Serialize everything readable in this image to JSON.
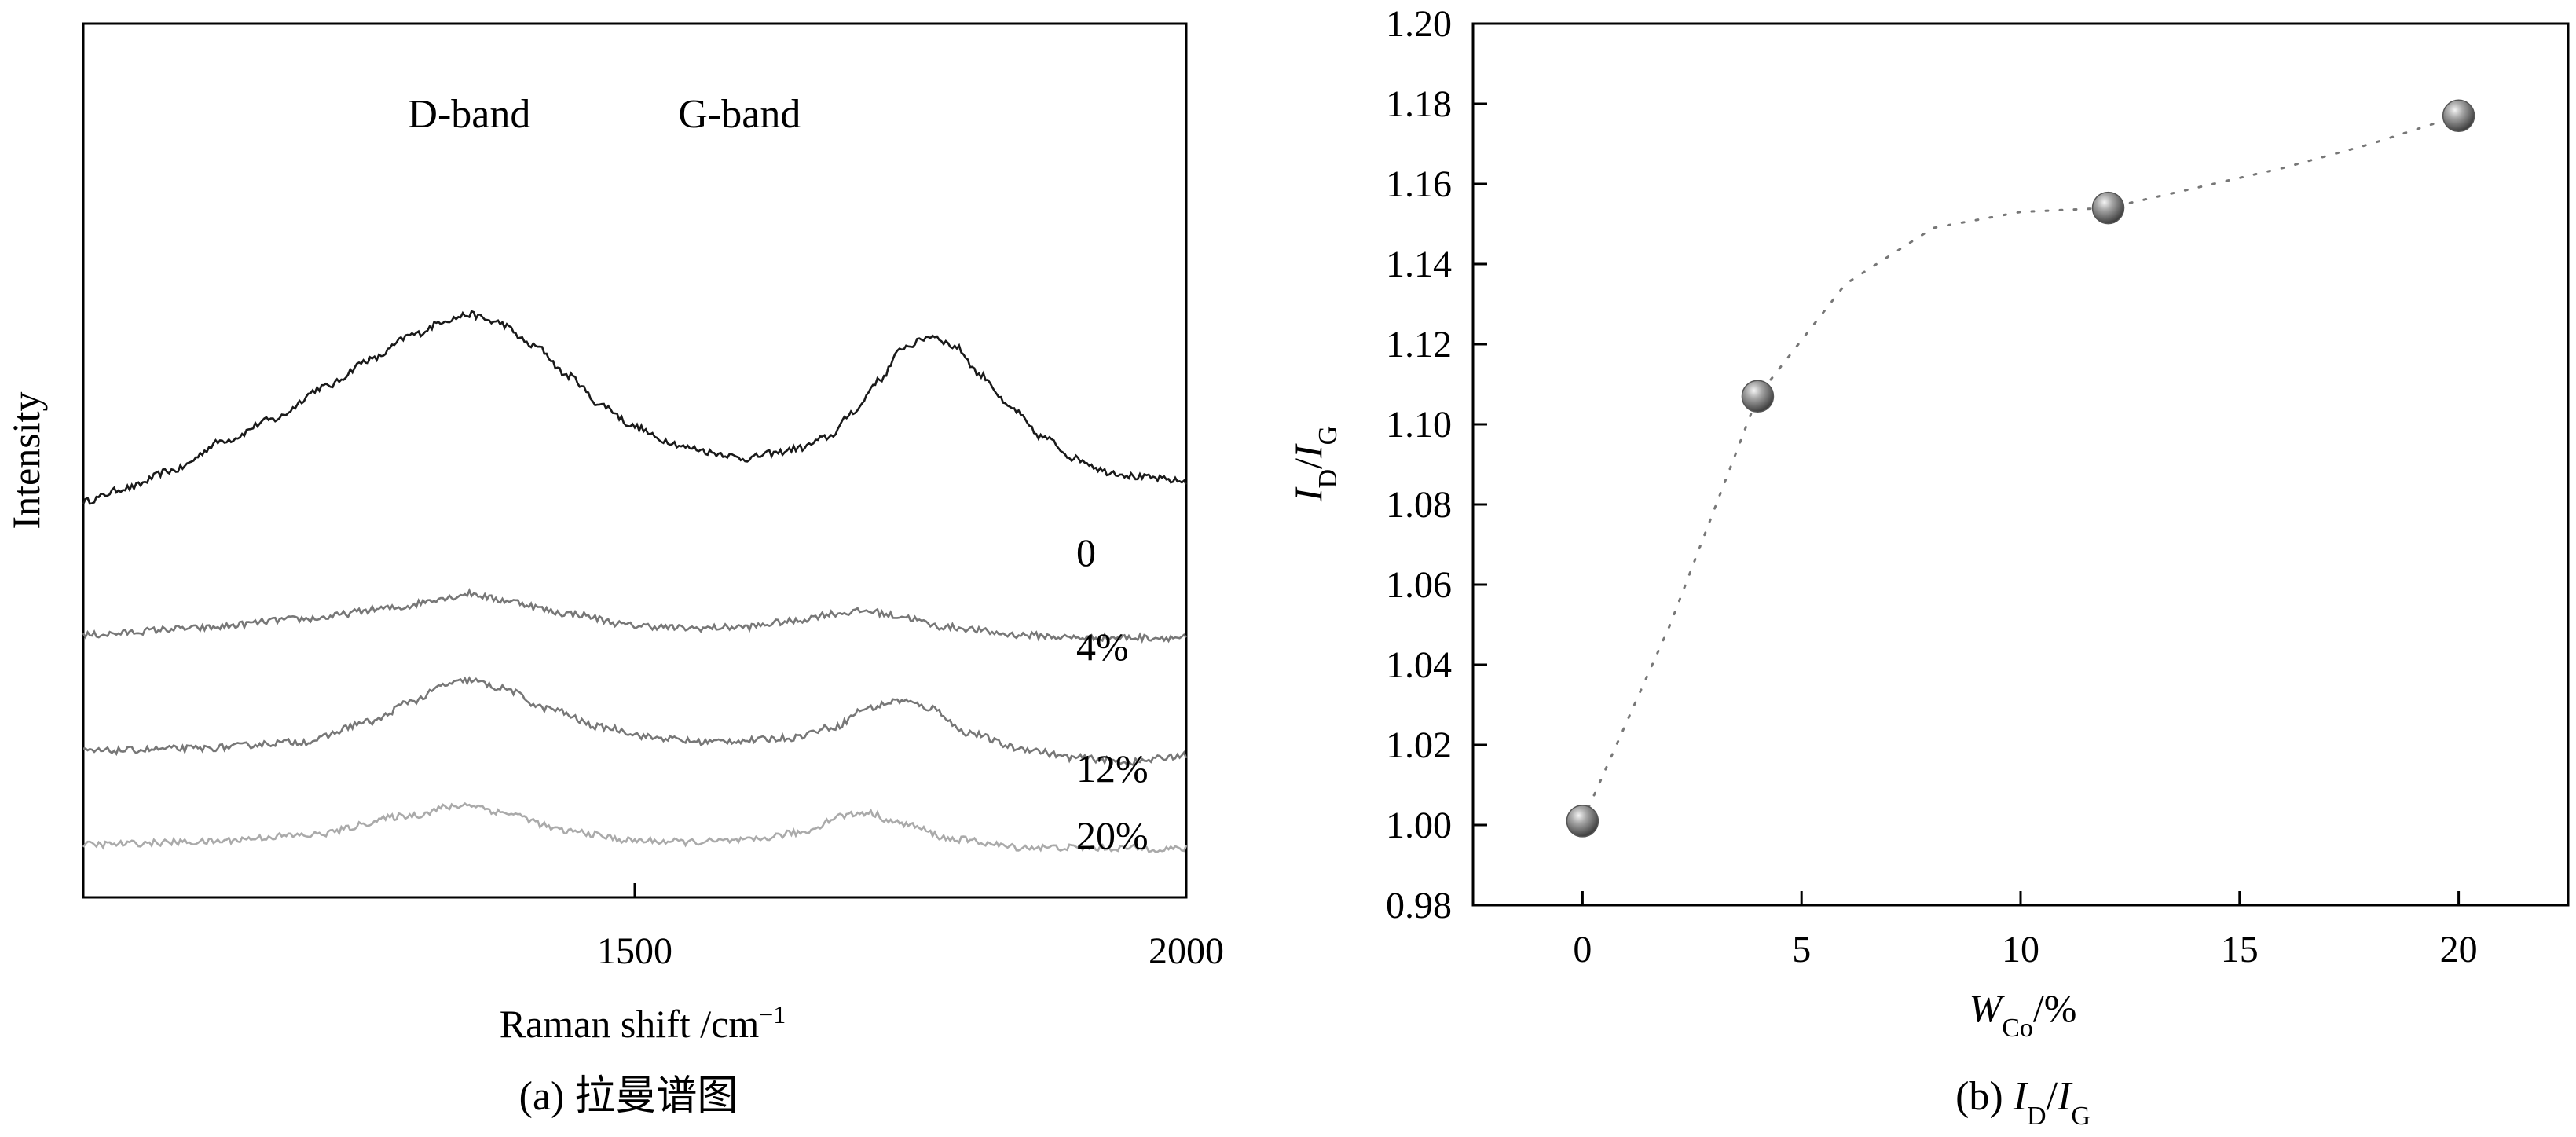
{
  "chart_data": [
    {
      "type": "line",
      "caption": "(a) 拉曼谱图",
      "xlabel": "Raman shift /cm",
      "xlabel_sup": "−1",
      "ylabel": "Intensity",
      "xlim": [
        1000,
        2000
      ],
      "xticks": [
        "1500",
        "2000"
      ],
      "xtick_values": [
        1500,
        2000
      ],
      "peak_labels": [
        {
          "text": "D-band",
          "x": 1350
        },
        {
          "text": "G-band",
          "x": 1595
        }
      ],
      "series": [
        {
          "name": "0",
          "color": "#1a1a1a",
          "offset": 2.55,
          "points": [
            [
              1000,
              0.02
            ],
            [
              1040,
              0.12
            ],
            [
              1080,
              0.25
            ],
            [
              1130,
              0.48
            ],
            [
              1170,
              0.63
            ],
            [
              1220,
              0.88
            ],
            [
              1260,
              1.08
            ],
            [
              1300,
              1.27
            ],
            [
              1330,
              1.38
            ],
            [
              1350,
              1.42
            ],
            [
              1375,
              1.36
            ],
            [
              1410,
              1.18
            ],
            [
              1440,
              0.96
            ],
            [
              1470,
              0.74
            ],
            [
              1500,
              0.58
            ],
            [
              1525,
              0.48
            ],
            [
              1550,
              0.42
            ],
            [
              1575,
              0.38
            ],
            [
              1600,
              0.34
            ],
            [
              1625,
              0.38
            ],
            [
              1650,
              0.42
            ],
            [
              1675,
              0.5
            ],
            [
              1700,
              0.7
            ],
            [
              1720,
              0.92
            ],
            [
              1745,
              1.18
            ],
            [
              1770,
              1.26
            ],
            [
              1790,
              1.18
            ],
            [
              1815,
              0.96
            ],
            [
              1840,
              0.72
            ],
            [
              1870,
              0.5
            ],
            [
              1900,
              0.34
            ],
            [
              1930,
              0.24
            ],
            [
              1960,
              0.2
            ],
            [
              2000,
              0.17
            ]
          ]
        },
        {
          "name": "4%",
          "color": "#777777",
          "offset": 1.55,
          "points": [
            [
              1000,
              0.02
            ],
            [
              1100,
              0.07
            ],
            [
              1200,
              0.14
            ],
            [
              1280,
              0.22
            ],
            [
              1330,
              0.3
            ],
            [
              1350,
              0.33
            ],
            [
              1380,
              0.28
            ],
            [
              1440,
              0.18
            ],
            [
              1500,
              0.09
            ],
            [
              1550,
              0.07
            ],
            [
              1600,
              0.08
            ],
            [
              1640,
              0.12
            ],
            [
              1680,
              0.18
            ],
            [
              1710,
              0.2
            ],
            [
              1740,
              0.16
            ],
            [
              1780,
              0.08
            ],
            [
              1850,
              0.02
            ],
            [
              1900,
              0.0
            ],
            [
              2000,
              0.0
            ]
          ]
        },
        {
          "name": "12%",
          "color": "#777777",
          "offset": 0.7,
          "points": [
            [
              1000,
              0.0
            ],
            [
              1100,
              0.02
            ],
            [
              1200,
              0.07
            ],
            [
              1260,
              0.22
            ],
            [
              1300,
              0.38
            ],
            [
              1330,
              0.5
            ],
            [
              1350,
              0.53
            ],
            [
              1380,
              0.47
            ],
            [
              1420,
              0.32
            ],
            [
              1470,
              0.18
            ],
            [
              1520,
              0.1
            ],
            [
              1560,
              0.07
            ],
            [
              1600,
              0.08
            ],
            [
              1640,
              0.1
            ],
            [
              1680,
              0.18
            ],
            [
              1710,
              0.32
            ],
            [
              1740,
              0.38
            ],
            [
              1770,
              0.32
            ],
            [
              1800,
              0.14
            ],
            [
              1850,
              0.02
            ],
            [
              1900,
              -0.05
            ],
            [
              1950,
              -0.08
            ],
            [
              2000,
              -0.03
            ]
          ]
        },
        {
          "name": "20%",
          "color": "#aaaaaa",
          "offset": 0.0,
          "points": [
            [
              1000,
              0.0
            ],
            [
              1100,
              0.02
            ],
            [
              1200,
              0.07
            ],
            [
              1300,
              0.22
            ],
            [
              1330,
              0.28
            ],
            [
              1350,
              0.3
            ],
            [
              1380,
              0.24
            ],
            [
              1440,
              0.1
            ],
            [
              1500,
              0.03
            ],
            [
              1550,
              0.02
            ],
            [
              1600,
              0.03
            ],
            [
              1650,
              0.09
            ],
            [
              1690,
              0.22
            ],
            [
              1710,
              0.24
            ],
            [
              1740,
              0.16
            ],
            [
              1790,
              0.04
            ],
            [
              1850,
              -0.02
            ],
            [
              2000,
              -0.03
            ]
          ]
        }
      ]
    },
    {
      "type": "scatter",
      "caption_prefix": "(b) ",
      "caption_main_1": "I",
      "caption_sub_1": "D",
      "caption_slash": "/",
      "caption_main_2": "I",
      "caption_sub_2": "G",
      "xlabel_main": "W",
      "xlabel_sub": "Co",
      "xlabel_unit": "/%",
      "ylabel_main_1": "I",
      "ylabel_sub_1": "D",
      "ylabel_slash": "/",
      "ylabel_main_2": "I",
      "ylabel_sub_2": "G",
      "xlim": [
        -2.5,
        22.5
      ],
      "ylim": [
        0.98,
        1.2
      ],
      "xticks": [
        "0",
        "5",
        "10",
        "15",
        "20"
      ],
      "yticks": [
        "0.98",
        "1.00",
        "1.02",
        "1.04",
        "1.06",
        "1.08",
        "1.10",
        "1.12",
        "1.14",
        "1.16",
        "1.18",
        "1.20"
      ],
      "x": [
        0,
        4,
        12,
        20
      ],
      "y": [
        1.001,
        1.107,
        1.154,
        1.177
      ],
      "trend": [
        [
          0,
          1.001
        ],
        [
          2,
          1.05
        ],
        [
          4,
          1.107
        ],
        [
          6,
          1.135
        ],
        [
          8,
          1.149
        ],
        [
          10,
          1.153
        ],
        [
          12,
          1.154
        ],
        [
          14,
          1.159
        ],
        [
          16,
          1.164
        ],
        [
          18,
          1.17
        ],
        [
          20,
          1.177
        ]
      ]
    }
  ]
}
